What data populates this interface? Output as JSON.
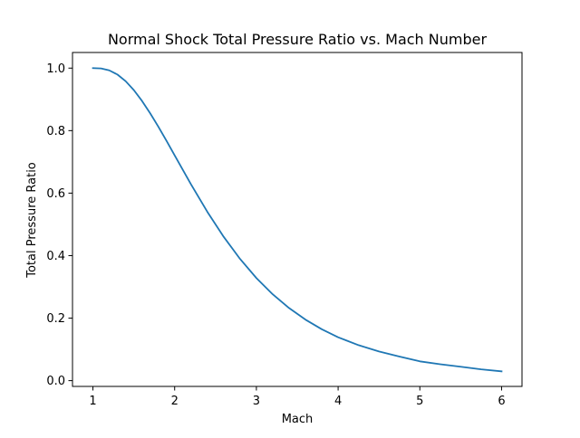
{
  "chart_data": {
    "type": "line",
    "title": "Normal Shock Total Pressure Ratio vs. Mach Number",
    "xlabel": "Mach",
    "ylabel": "Total Pressure Ratio",
    "xlim": [
      0.75,
      6.25
    ],
    "ylim": [
      -0.0185,
      1.05
    ],
    "xticks": [
      1,
      2,
      3,
      4,
      5,
      6
    ],
    "xtick_labels": [
      "1",
      "2",
      "3",
      "4",
      "5",
      "6"
    ],
    "yticks": [
      0.0,
      0.2,
      0.4,
      0.6,
      0.8,
      1.0
    ],
    "ytick_labels": [
      "0.0",
      "0.2",
      "0.4",
      "0.6",
      "0.8",
      "1.0"
    ],
    "grid": false,
    "series": [
      {
        "color": "#1f77b4",
        "x": [
          1.0,
          1.1,
          1.2,
          1.3,
          1.4,
          1.5,
          1.6,
          1.7,
          1.8,
          1.9,
          2.0,
          2.2,
          2.4,
          2.6,
          2.8,
          3.0,
          3.2,
          3.4,
          3.6,
          3.8,
          4.0,
          4.25,
          4.5,
          4.75,
          5.0,
          5.25,
          5.5,
          5.75,
          6.0
        ],
        "y": [
          1.0,
          0.9989,
          0.9928,
          0.9794,
          0.9582,
          0.9298,
          0.8952,
          0.8557,
          0.8127,
          0.7674,
          0.7209,
          0.6281,
          0.5401,
          0.4601,
          0.3895,
          0.3283,
          0.2762,
          0.2322,
          0.1953,
          0.1645,
          0.1388,
          0.1135,
          0.0933,
          0.0771,
          0.0617,
          0.0525,
          0.0446,
          0.0362,
          0.0297
        ]
      }
    ]
  }
}
